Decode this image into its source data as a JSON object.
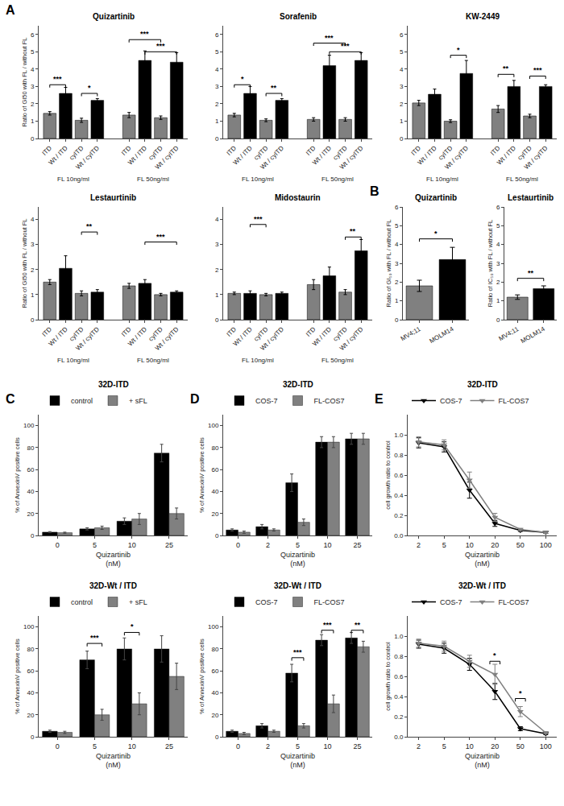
{
  "chart_data": [
    {
      "type": "bar",
      "panel_label": "A",
      "title": "Quizartinib",
      "ylabel": "Ratio of GI50 with FL / without FL",
      "groups": [
        {
          "label": "FL 10ng/ml",
          "categories": [
            "ITD",
            "Wt / ITD",
            "cyITD",
            "Wt / cyITD"
          ],
          "values": [
            1.45,
            2.6,
            1.05,
            2.2
          ],
          "errors": [
            0.1,
            0.35,
            0.12,
            0.1
          ],
          "colors": [
            "#808080",
            "#000000",
            "#808080",
            "#000000"
          ],
          "annotations": [
            {
              "x1": 0,
              "x2": 1,
              "y": 3.1,
              "text": "***"
            },
            {
              "x1": 2,
              "x2": 3,
              "y": 2.6,
              "text": "*"
            }
          ]
        },
        {
          "label": "FL 50ng/ml",
          "categories": [
            "ITD",
            "Wt / ITD",
            "cyITD",
            "Wt / cyITD"
          ],
          "values": [
            1.35,
            4.5,
            1.2,
            4.4
          ],
          "errors": [
            0.15,
            0.55,
            0.1,
            0.55
          ],
          "colors": [
            "#808080",
            "#000000",
            "#808080",
            "#000000"
          ],
          "annotations": [
            {
              "x1": 0,
              "x2": 2,
              "y": 5.7,
              "text": "***"
            },
            {
              "x1": 1,
              "x2": 3,
              "y": 5.0,
              "text": "***"
            }
          ]
        }
      ],
      "ylim": [
        0,
        6.5
      ],
      "yticks": [
        0,
        1,
        2,
        3,
        4,
        5,
        6
      ],
      "grid": false
    },
    {
      "type": "bar",
      "title": "Sorafenib",
      "groups": [
        {
          "label": "FL 10ng/ml",
          "categories": [
            "ITD",
            "Wt / ITD",
            "cyITD",
            "Wt / cyITD"
          ],
          "values": [
            1.35,
            2.6,
            1.05,
            2.2
          ],
          "errors": [
            0.1,
            0.4,
            0.08,
            0.1
          ],
          "colors": [
            "#808080",
            "#000000",
            "#808080",
            "#000000"
          ],
          "annotations": [
            {
              "x1": 0,
              "x2": 1,
              "y": 3.1,
              "text": "*"
            },
            {
              "x1": 2,
              "x2": 3,
              "y": 2.6,
              "text": "**"
            }
          ]
        },
        {
          "label": "FL 50ng/ml",
          "categories": [
            "ITD",
            "Wt / ITD",
            "cyITD",
            "Wt / cyITD"
          ],
          "values": [
            1.1,
            4.2,
            1.1,
            4.5
          ],
          "errors": [
            0.1,
            0.6,
            0.1,
            0.45
          ],
          "colors": [
            "#808080",
            "#000000",
            "#808080",
            "#000000"
          ],
          "annotations": [
            {
              "x1": 0,
              "x2": 2,
              "y": 5.5,
              "text": "***"
            },
            {
              "x1": 1,
              "x2": 3,
              "y": 5.0,
              "text": "***"
            }
          ]
        }
      ],
      "ylim": [
        0,
        6.5
      ],
      "yticks": [
        0,
        1,
        2,
        3,
        4,
        5,
        6
      ],
      "grid": false
    },
    {
      "type": "bar",
      "title": "KW-2449",
      "groups": [
        {
          "label": "FL 10ng/ml",
          "categories": [
            "ITD",
            "Wt / ITD",
            "cyITD",
            "Wt / cyITD"
          ],
          "values": [
            2.05,
            2.55,
            1.0,
            3.75
          ],
          "errors": [
            0.15,
            0.3,
            0.08,
            0.75
          ],
          "colors": [
            "#808080",
            "#000000",
            "#808080",
            "#000000"
          ],
          "annotations": [
            {
              "x1": 2,
              "x2": 3,
              "y": 4.8,
              "text": "*"
            }
          ]
        },
        {
          "label": "FL 50ng/ml",
          "categories": [
            "ITD",
            "Wt / ITD",
            "cyITD",
            "Wt / cyITD"
          ],
          "values": [
            1.7,
            3.0,
            1.3,
            3.0
          ],
          "errors": [
            0.2,
            0.35,
            0.1,
            0.1
          ],
          "colors": [
            "#808080",
            "#000000",
            "#808080",
            "#000000"
          ],
          "annotations": [
            {
              "x1": 0,
              "x2": 1,
              "y": 3.7,
              "text": "**"
            },
            {
              "x1": 2,
              "x2": 3,
              "y": 3.6,
              "text": "***"
            }
          ]
        }
      ],
      "ylim": [
        0,
        6.5
      ],
      "yticks": [
        0,
        1,
        2,
        3,
        4,
        5,
        6
      ],
      "grid": false
    },
    {
      "type": "bar",
      "title": "Lestaurtinib",
      "ylabel": "Ratio of GI50 with FL / without FL",
      "groups": [
        {
          "label": "FL 10ng/ml",
          "categories": [
            "ITD",
            "Wt / ITD",
            "cyITD",
            "Wt / cyITD"
          ],
          "values": [
            1.5,
            2.05,
            1.05,
            1.1
          ],
          "errors": [
            0.1,
            0.5,
            0.1,
            0.1
          ],
          "colors": [
            "#808080",
            "#000000",
            "#808080",
            "#000000"
          ],
          "annotations": [
            {
              "x1": 2,
              "x2": 3,
              "y": 3.5,
              "text": "**"
            }
          ]
        },
        {
          "label": "FL 50ng/ml",
          "categories": [
            "ITD",
            "Wt / ITD",
            "cyITD",
            "Wt / cyITD"
          ],
          "values": [
            1.35,
            1.45,
            1.0,
            1.1
          ],
          "errors": [
            0.1,
            0.15,
            0.05,
            0.05
          ],
          "colors": [
            "#808080",
            "#000000",
            "#808080",
            "#000000"
          ],
          "annotations": [
            {
              "x1": 1,
              "x2": 3,
              "y": 3.1,
              "text": "***"
            }
          ]
        }
      ],
      "ylim": [
        0,
        4.5
      ],
      "yticks": [
        0,
        1,
        2,
        3,
        4
      ],
      "grid": false
    },
    {
      "type": "bar",
      "title": "Midostaurin",
      "groups": [
        {
          "label": "FL 10ng/ml",
          "categories": [
            "ITD",
            "Wt / ITD",
            "cyITD",
            "Wt / cyITD"
          ],
          "values": [
            1.05,
            1.05,
            1.0,
            1.05
          ],
          "errors": [
            0.05,
            0.1,
            0.05,
            0.05
          ],
          "colors": [
            "#808080",
            "#000000",
            "#808080",
            "#000000"
          ],
          "annotations": [
            {
              "x1": 1,
              "x2": 2,
              "y": 3.8,
              "text": "***"
            }
          ]
        },
        {
          "label": "FL 50ng/ml",
          "categories": [
            "ITD",
            "Wt / ITD",
            "cyITD",
            "Wt / cyITD"
          ],
          "values": [
            1.4,
            1.75,
            1.1,
            2.75
          ],
          "errors": [
            0.2,
            0.35,
            0.1,
            0.45
          ],
          "colors": [
            "#808080",
            "#000000",
            "#808080",
            "#000000"
          ],
          "annotations": [
            {
              "x1": 2,
              "x2": 3,
              "y": 3.3,
              "text": "**"
            }
          ]
        }
      ],
      "ylim": [
        0,
        4.5
      ],
      "yticks": [
        0,
        1,
        2,
        3,
        4
      ],
      "grid": false
    },
    {
      "type": "bar",
      "panel_label": "B",
      "title": "Quizartinib",
      "ylabel": "Ratio of GI₅₀ with FL / without FL",
      "categories": [
        "MV4;11",
        "MOLM14"
      ],
      "values": [
        1.8,
        3.2
      ],
      "errors": [
        0.3,
        0.65
      ],
      "colors": [
        "#808080",
        "#000000"
      ],
      "annotations": [
        {
          "x1": 0,
          "x2": 1,
          "y": 4.3,
          "text": "*"
        }
      ],
      "ylim": [
        0,
        6
      ],
      "yticks": [
        0,
        1,
        2,
        3,
        4,
        5,
        6
      ],
      "grid": false
    },
    {
      "type": "bar",
      "title": "Lestaurtinib",
      "ylabel": "Ratio of IC₅₀ with FL / without FL",
      "categories": [
        "MV4;11",
        "MOLM14"
      ],
      "values": [
        1.2,
        1.65
      ],
      "errors": [
        0.12,
        0.15
      ],
      "colors": [
        "#808080",
        "#000000"
      ],
      "annotations": [
        {
          "x1": 0,
          "x2": 1,
          "y": 2.2,
          "text": "**"
        }
      ],
      "ylim": [
        0,
        6
      ],
      "yticks": [
        0,
        1,
        2,
        3,
        4,
        5,
        6
      ],
      "grid": false
    },
    {
      "type": "bar",
      "panel_label": "C",
      "title": "32D-ITD",
      "xlabel": "Quizartinib\n(nM)",
      "ylabel": "% of AnnexinV positive cells",
      "categories": [
        "0",
        "5",
        "10",
        "25"
      ],
      "series": [
        {
          "name": "control",
          "color": "#000000",
          "values": [
            3,
            6,
            13,
            75
          ],
          "errors": [
            0.5,
            1,
            3,
            8
          ]
        },
        {
          "name": "+ sFL",
          "color": "#808080",
          "values": [
            2.5,
            7,
            15,
            20
          ],
          "errors": [
            0.5,
            1.5,
            5,
            5
          ]
        }
      ],
      "annotations": [],
      "ylim": [
        0,
        110
      ],
      "yticks": [
        0,
        20,
        40,
        60,
        80,
        100
      ],
      "legend": "top",
      "grid": false
    },
    {
      "type": "bar",
      "title": "32D-Wt / ITD",
      "xlabel": "Quizartinib\n(nM)",
      "ylabel": "% of AnnexinV positive cells",
      "categories": [
        "0",
        "5",
        "10",
        "25"
      ],
      "series": [
        {
          "name": "control",
          "color": "#000000",
          "values": [
            5,
            70,
            80,
            80
          ],
          "errors": [
            1,
            8,
            10,
            12
          ]
        },
        {
          "name": "+ sFL",
          "color": "#808080",
          "values": [
            4,
            20,
            30,
            55
          ],
          "errors": [
            1,
            5,
            10,
            12
          ]
        }
      ],
      "annotations": [
        {
          "x": 1,
          "y": 85,
          "text": "***"
        },
        {
          "x": 2,
          "y": 95,
          "text": "*"
        }
      ],
      "ylim": [
        0,
        110
      ],
      "yticks": [
        0,
        20,
        40,
        60,
        80,
        100
      ],
      "legend": "top",
      "grid": false
    },
    {
      "type": "bar",
      "panel_label": "D",
      "title": "32D-ITD",
      "xlabel": "Quizartinib\n(nM)",
      "ylabel": "% of AnnexinV positive cells",
      "categories": [
        "0",
        "2",
        "5",
        "10",
        "25"
      ],
      "series": [
        {
          "name": "COS-7",
          "color": "#000000",
          "values": [
            5,
            8,
            48,
            85,
            88
          ],
          "errors": [
            1,
            2,
            8,
            5,
            5
          ]
        },
        {
          "name": "FL-COS7",
          "color": "#808080",
          "values": [
            3,
            5,
            12,
            85,
            88
          ],
          "errors": [
            1,
            1,
            3,
            5,
            5
          ]
        }
      ],
      "annotations": [],
      "ylim": [
        0,
        110
      ],
      "yticks": [
        0,
        20,
        40,
        60,
        80,
        100
      ],
      "legend": "top",
      "grid": false
    },
    {
      "type": "bar",
      "title": "32D-Wt / ITD",
      "xlabel": "Quizartinib\n(nM)",
      "ylabel": "% of AnnexinV positive cells",
      "categories": [
        "0",
        "2",
        "5",
        "10",
        "25"
      ],
      "series": [
        {
          "name": "COS-7",
          "color": "#000000",
          "values": [
            5,
            10,
            58,
            88,
            90
          ],
          "errors": [
            1,
            2,
            8,
            5,
            5
          ]
        },
        {
          "name": "FL-COS7",
          "color": "#808080",
          "values": [
            3,
            5,
            10,
            30,
            82
          ],
          "errors": [
            1,
            1,
            2,
            8,
            5
          ]
        }
      ],
      "annotations": [
        {
          "x": 2,
          "y": 72,
          "text": "***"
        },
        {
          "x": 3,
          "y": 97,
          "text": "***"
        },
        {
          "x": 4,
          "y": 97,
          "text": "**"
        }
      ],
      "ylim": [
        0,
        110
      ],
      "yticks": [
        0,
        20,
        40,
        60,
        80,
        100
      ],
      "legend": "top",
      "grid": false
    },
    {
      "type": "line",
      "panel_label": "E",
      "title": "32D-ITD",
      "xlabel": "Quizartinib\n(nM)",
      "ylabel": "cell growth ratio to control",
      "categories": [
        "2",
        "5",
        "10",
        "20",
        "50",
        "100"
      ],
      "series": [
        {
          "name": "COS-7",
          "color": "#000000",
          "marker": "triangle-down",
          "values": [
            0.92,
            0.88,
            0.45,
            0.12,
            0.05,
            0.03
          ],
          "errors": [
            0.05,
            0.05,
            0.08,
            0.03,
            0.01,
            0.01
          ]
        },
        {
          "name": "FL-COS7",
          "color": "#808080",
          "marker": "triangle-down",
          "values": [
            0.93,
            0.9,
            0.55,
            0.18,
            0.06,
            0.03
          ],
          "errors": [
            0.05,
            0.05,
            0.08,
            0.04,
            0.01,
            0.01
          ]
        }
      ],
      "annotations": [],
      "ylim": [
        0,
        1.2
      ],
      "yticks": [
        {
          "value": 0,
          "label": "0.0"
        },
        0.2,
        0.4,
        0.6,
        0.8,
        {
          "value": 1.0,
          "label": "1.0"
        }
      ],
      "legend": "top",
      "grid": false
    },
    {
      "type": "line",
      "title": "32D-Wt / ITD",
      "xlabel": "Quizartinib\n(nM)",
      "ylabel": "cell growth ratio to control",
      "categories": [
        "2",
        "5",
        "10",
        "20",
        "50",
        "100"
      ],
      "series": [
        {
          "name": "COS-7",
          "color": "#000000",
          "marker": "triangle-down",
          "values": [
            0.92,
            0.88,
            0.72,
            0.45,
            0.08,
            0.03
          ],
          "errors": [
            0.04,
            0.05,
            0.06,
            0.08,
            0.02,
            0.01
          ]
        },
        {
          "name": "FL-COS7",
          "color": "#808080",
          "marker": "triangle-down",
          "values": [
            0.93,
            0.9,
            0.75,
            0.62,
            0.25,
            0.04
          ],
          "errors": [
            0.04,
            0.05,
            0.06,
            0.1,
            0.05,
            0.01
          ]
        }
      ],
      "annotations": [
        {
          "x": 3,
          "y": 0.75,
          "text": "*"
        },
        {
          "x": 4,
          "y": 0.38,
          "text": "*"
        }
      ],
      "ylim": [
        0,
        1.2
      ],
      "yticks": [
        {
          "value": 0,
          "label": "0.0"
        },
        0.2,
        0.4,
        0.6,
        0.8,
        {
          "value": 1.0,
          "label": "1.0"
        }
      ],
      "legend": "top",
      "grid": false
    }
  ]
}
